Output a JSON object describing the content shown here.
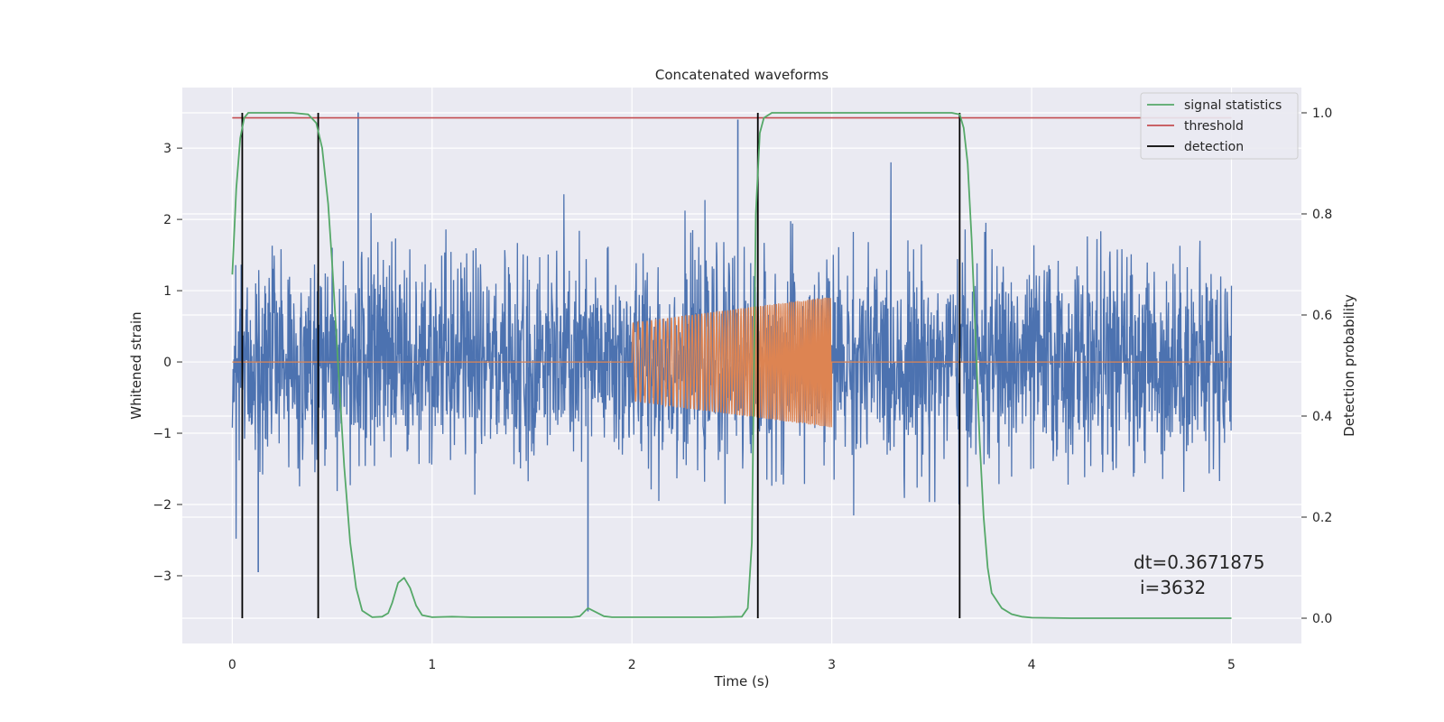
{
  "colors": {
    "background": "#eaeaf2",
    "grid": "#ffffff",
    "strain": "#4c72b0",
    "template": "#dd8452",
    "signal_statistics": "#55a868",
    "threshold": "#c44e52",
    "detection": "#000000"
  },
  "chart_data": {
    "type": "line",
    "title": "Concatenated waveforms",
    "xlabel": "Time (s)",
    "ylabel": "Whitened strain",
    "y2label": "Detection probability",
    "xlim": [
      -0.25,
      5.35
    ],
    "ylim": [
      -3.95,
      3.85
    ],
    "y2lim": [
      -0.05,
      1.05
    ],
    "grid": true,
    "legend_position": "top-right",
    "x_ticks": [
      0,
      1,
      2,
      3,
      4,
      5
    ],
    "y_ticks": [
      -3,
      -2,
      -1,
      0,
      1,
      2,
      3
    ],
    "y2_ticks": [
      0.0,
      0.2,
      0.4,
      0.6,
      0.8,
      1.0
    ],
    "x_tick_labels": [
      "0",
      "1",
      "2",
      "3",
      "4",
      "5"
    ],
    "y_tick_labels": [
      "−3",
      "−2",
      "−1",
      "0",
      "1",
      "2",
      "3"
    ],
    "y2_tick_labels": [
      "0.0",
      "0.2",
      "0.4",
      "0.6",
      "0.8",
      "1.0"
    ],
    "strain": {
      "axis": "left",
      "description_range": [
        0,
        5
      ],
      "typical_amplitude": 0.75,
      "spikes": [
        {
          "x": 0.63,
          "y": 3.5
        },
        {
          "x": 2.53,
          "y": 3.4
        },
        {
          "x": 1.78,
          "y": -3.5
        },
        {
          "x": 0.13,
          "y": -2.95
        }
      ]
    },
    "template": {
      "axis": "left",
      "start": 2.0,
      "end": 3.0,
      "amp_start": 0.55,
      "amp_end": 0.92
    },
    "series": [
      {
        "name": "signal statistics",
        "axis": "right",
        "x": [
          0,
          0.02,
          0.04,
          0.06,
          0.08,
          0.1,
          0.15,
          0.2,
          0.3,
          0.38,
          0.42,
          0.45,
          0.48,
          0.5,
          0.53,
          0.56,
          0.59,
          0.62,
          0.65,
          0.7,
          0.75,
          0.78,
          0.8,
          0.83,
          0.86,
          0.89,
          0.92,
          0.95,
          1.0,
          1.1,
          1.2,
          1.3,
          1.5,
          1.7,
          1.74,
          1.78,
          1.82,
          1.86,
          1.9,
          2.0,
          2.2,
          2.4,
          2.55,
          2.58,
          2.6,
          2.62,
          2.64,
          2.66,
          2.7,
          2.8,
          3.0,
          3.3,
          3.6,
          3.64,
          3.66,
          3.68,
          3.7,
          3.72,
          3.74,
          3.76,
          3.78,
          3.8,
          3.85,
          3.9,
          3.95,
          4.0,
          4.2,
          4.5,
          4.8,
          5.0
        ],
        "values": [
          0.68,
          0.85,
          0.95,
          0.99,
          1.0,
          1.0,
          1.0,
          1.0,
          1.0,
          0.997,
          0.98,
          0.93,
          0.82,
          0.7,
          0.5,
          0.3,
          0.15,
          0.06,
          0.015,
          0.002,
          0.003,
          0.01,
          0.03,
          0.07,
          0.08,
          0.06,
          0.025,
          0.006,
          0.002,
          0.003,
          0.002,
          0.002,
          0.002,
          0.002,
          0.004,
          0.02,
          0.012,
          0.004,
          0.002,
          0.002,
          0.002,
          0.002,
          0.003,
          0.02,
          0.15,
          0.8,
          0.96,
          0.99,
          1.0,
          1.0,
          1.0,
          1.0,
          1.0,
          0.997,
          0.97,
          0.9,
          0.75,
          0.55,
          0.35,
          0.2,
          0.1,
          0.05,
          0.02,
          0.008,
          0.003,
          0.001,
          0.0,
          0.0,
          0.0,
          0.0
        ]
      },
      {
        "name": "threshold",
        "axis": "right",
        "x": [
          0,
          5
        ],
        "values": [
          0.99,
          0.99
        ]
      }
    ],
    "detections": {
      "name": "detection",
      "x": [
        0.05,
        0.43,
        2.63,
        3.64
      ],
      "y2_range": [
        0.0,
        1.0
      ]
    },
    "legend": [
      "signal statistics",
      "threshold",
      "detection"
    ],
    "annotation": {
      "line1": "dt=0.3671875",
      "line2": "i=3632"
    }
  }
}
